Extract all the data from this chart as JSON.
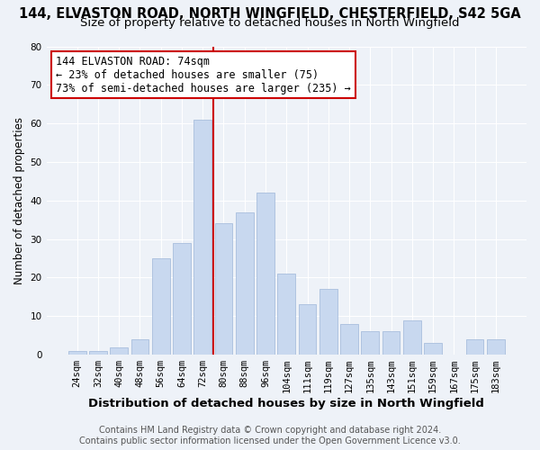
{
  "title": "144, ELVASTON ROAD, NORTH WINGFIELD, CHESTERFIELD, S42 5GA",
  "subtitle": "Size of property relative to detached houses in North Wingfield",
  "xlabel": "Distribution of detached houses by size in North Wingfield",
  "ylabel": "Number of detached properties",
  "footer_line1": "Contains HM Land Registry data © Crown copyright and database right 2024.",
  "footer_line2": "Contains public sector information licensed under the Open Government Licence v3.0.",
  "bar_labels": [
    "24sqm",
    "32sqm",
    "40sqm",
    "48sqm",
    "56sqm",
    "64sqm",
    "72sqm",
    "80sqm",
    "88sqm",
    "96sqm",
    "104sqm",
    "111sqm",
    "119sqm",
    "127sqm",
    "135sqm",
    "143sqm",
    "151sqm",
    "159sqm",
    "167sqm",
    "175sqm",
    "183sqm"
  ],
  "bar_values": [
    1,
    1,
    2,
    4,
    25,
    29,
    61,
    34,
    37,
    42,
    21,
    13,
    17,
    8,
    6,
    6,
    9,
    3,
    0,
    4,
    4
  ],
  "bar_color": "#c8d8ef",
  "bar_edge_color": "#a8bedd",
  "vline_x_index": 6,
  "vline_color": "#cc0000",
  "annotation_title": "144 ELVASTON ROAD: 74sqm",
  "annotation_line1": "← 23% of detached houses are smaller (75)",
  "annotation_line2": "73% of semi-detached houses are larger (235) →",
  "annotation_box_color": "white",
  "annotation_box_edge_color": "#cc0000",
  "ylim": [
    0,
    80
  ],
  "yticks": [
    0,
    10,
    20,
    30,
    40,
    50,
    60,
    70,
    80
  ],
  "background_color": "#eef2f8",
  "title_fontsize": 10.5,
  "subtitle_fontsize": 9.5,
  "xlabel_fontsize": 9.5,
  "ylabel_fontsize": 8.5,
  "tick_fontsize": 7.5,
  "annotation_fontsize": 8.5,
  "footer_fontsize": 7.0
}
